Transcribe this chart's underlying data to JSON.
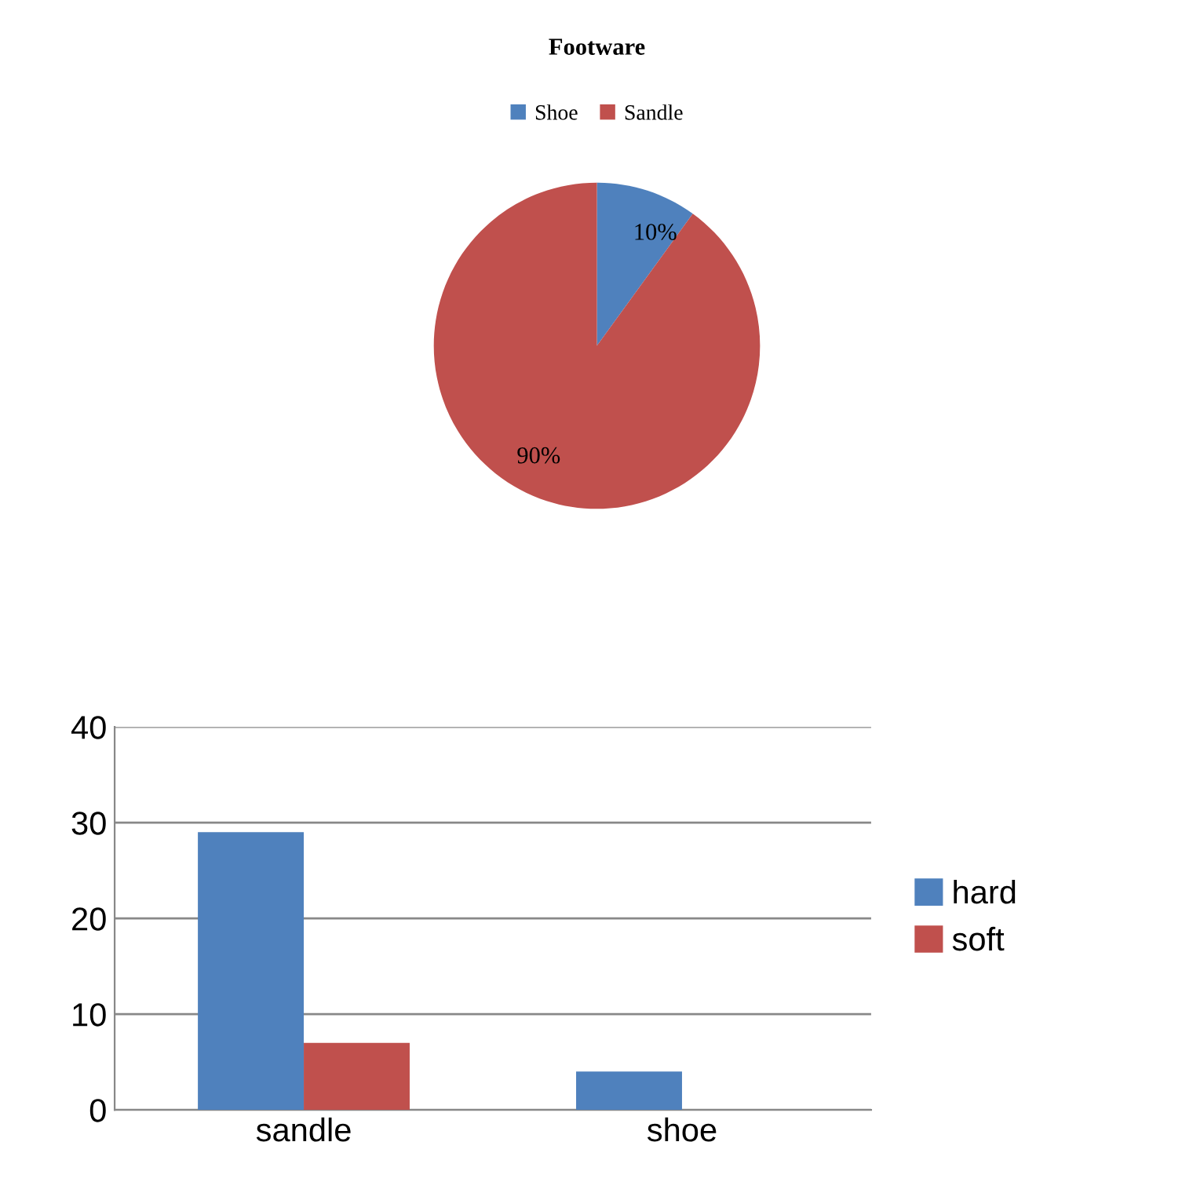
{
  "chart_data": [
    {
      "type": "pie",
      "title": "Footware",
      "categories": [
        "Shoe",
        "Sandle"
      ],
      "values": [
        10,
        90
      ],
      "colors": [
        "#4f81bd",
        "#c0504d"
      ],
      "value_labels": [
        "10%",
        "90%"
      ],
      "legend": "top"
    },
    {
      "type": "bar",
      "categories": [
        "sandle",
        "shoe"
      ],
      "series": [
        {
          "name": "hard",
          "color": "#4f81bd",
          "values": [
            29,
            4
          ]
        },
        {
          "name": "soft",
          "color": "#c0504d",
          "values": [
            7,
            0
          ]
        }
      ],
      "ylim": [
        0,
        40
      ],
      "yticks": [
        0,
        10,
        20,
        30,
        40
      ],
      "grid": "y",
      "legend": "right"
    }
  ]
}
